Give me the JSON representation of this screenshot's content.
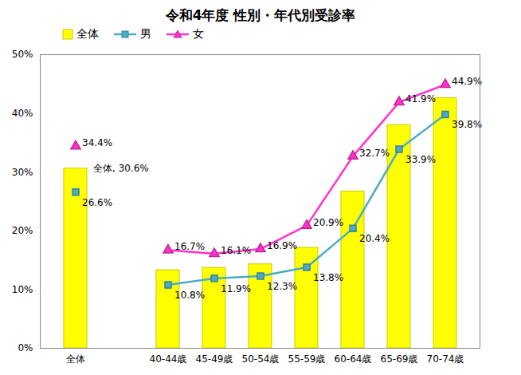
{
  "chart_data": {
    "type": "bar",
    "title": "令和4年度 性別・年代別受診率",
    "categories": [
      "全体",
      null,
      "40-44歳",
      "45-49歳",
      "50-54歳",
      "55-59歳",
      "60-64歳",
      "65-69歳",
      "70-74歳"
    ],
    "series": [
      {
        "name": "全体",
        "type": "bar",
        "color": "#ffff00",
        "values": [
          30.6,
          null,
          13.3,
          13.7,
          14.3,
          17.1,
          26.7,
          38.0,
          42.6
        ],
        "value_labels": [
          "全体, 30.6%",
          null,
          null,
          null,
          null,
          null,
          null,
          null,
          null
        ]
      },
      {
        "name": "男",
        "type": "line",
        "color": "#4bacc6",
        "marker": "square",
        "values": [
          26.6,
          null,
          10.8,
          11.9,
          12.3,
          13.8,
          20.4,
          33.9,
          39.8
        ],
        "value_labels": [
          "26.6%",
          null,
          "10.8%",
          "11.9%",
          "12.3%",
          "13.8%",
          "20.4%",
          "33.9%",
          "39.8%"
        ]
      },
      {
        "name": "女",
        "type": "line",
        "color": "#ff33cc",
        "marker": "triangle",
        "values": [
          34.4,
          null,
          16.7,
          16.1,
          16.9,
          20.9,
          32.7,
          41.9,
          44.9
        ],
        "value_labels": [
          "34.4%",
          null,
          "16.7%",
          "16.1%",
          "16.9%",
          "20.9%",
          "32.7%",
          "41.9%",
          "44.9%"
        ]
      }
    ],
    "ylim": [
      0,
      50
    ],
    "yticks": [
      {
        "value": 0,
        "label": "0%"
      },
      {
        "value": 10,
        "label": "10%"
      },
      {
        "value": 20,
        "label": "20%"
      },
      {
        "value": 30,
        "label": "30%"
      },
      {
        "value": 40,
        "label": "40%"
      },
      {
        "value": 50,
        "label": "50%"
      }
    ],
    "grid": false,
    "legend": "top-left",
    "data_labels": true
  }
}
